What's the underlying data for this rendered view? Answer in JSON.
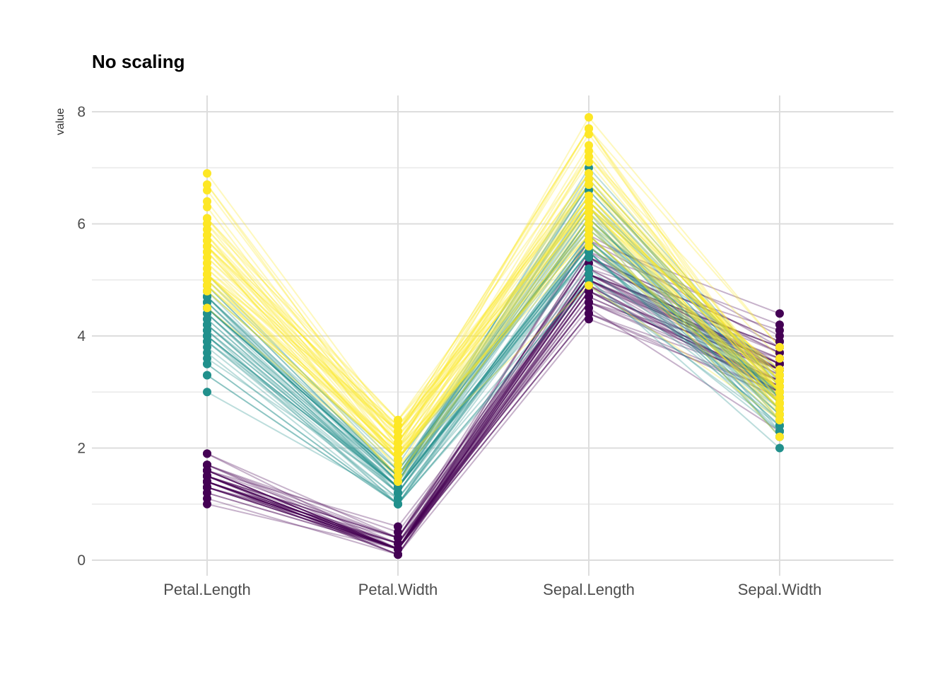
{
  "title": "No scaling",
  "ylabel": "value",
  "chart_data": {
    "type": "line",
    "variant": "parallel-coordinates",
    "title": "No scaling",
    "ylabel": "value",
    "xlabel": "",
    "categories": [
      "Petal.Length",
      "Petal.Width",
      "Sepal.Length",
      "Sepal.Width"
    ],
    "yticks": [
      0,
      2,
      4,
      6,
      8
    ],
    "ylim": [
      0,
      8
    ],
    "grid": "major+minor horizontal, major vertical at each category",
    "legend": "none",
    "colors": {
      "purple": "#440154",
      "teal": "#21908C",
      "yellow": "#FDE725",
      "grid_major": "#DDDDDD",
      "grid_minor": "#E9E9E9",
      "text": "#4D4D4D"
    },
    "series": [
      {
        "name": "purple",
        "color": "#440154",
        "rows": [
          [
            1.4,
            0.2,
            5.1,
            3.5
          ],
          [
            1.4,
            0.2,
            4.9,
            3.0
          ],
          [
            1.3,
            0.2,
            4.7,
            3.2
          ],
          [
            1.5,
            0.2,
            4.6,
            3.1
          ],
          [
            1.4,
            0.2,
            5.0,
            3.6
          ],
          [
            1.7,
            0.4,
            5.4,
            3.9
          ],
          [
            1.4,
            0.3,
            4.6,
            3.4
          ],
          [
            1.5,
            0.2,
            5.0,
            3.4
          ],
          [
            1.4,
            0.2,
            4.4,
            2.9
          ],
          [
            1.5,
            0.1,
            4.9,
            3.1
          ],
          [
            1.5,
            0.2,
            5.4,
            3.7
          ],
          [
            1.6,
            0.2,
            4.8,
            3.4
          ],
          [
            1.4,
            0.1,
            4.8,
            3.0
          ],
          [
            1.1,
            0.1,
            4.3,
            3.0
          ],
          [
            1.2,
            0.2,
            5.8,
            4.0
          ],
          [
            1.5,
            0.4,
            5.7,
            4.4
          ],
          [
            1.3,
            0.4,
            5.4,
            3.9
          ],
          [
            1.4,
            0.3,
            5.1,
            3.5
          ],
          [
            1.7,
            0.3,
            5.7,
            3.8
          ],
          [
            1.5,
            0.3,
            5.1,
            3.8
          ],
          [
            1.7,
            0.2,
            5.4,
            3.4
          ],
          [
            1.5,
            0.4,
            5.1,
            3.7
          ],
          [
            1.0,
            0.2,
            4.6,
            3.6
          ],
          [
            1.7,
            0.5,
            5.1,
            3.3
          ],
          [
            1.9,
            0.2,
            4.8,
            3.4
          ],
          [
            1.6,
            0.2,
            5.0,
            3.0
          ],
          [
            1.6,
            0.4,
            5.0,
            3.4
          ],
          [
            1.5,
            0.2,
            5.2,
            3.5
          ],
          [
            1.4,
            0.2,
            5.2,
            3.4
          ],
          [
            1.6,
            0.2,
            4.7,
            3.2
          ],
          [
            1.6,
            0.2,
            4.8,
            3.1
          ],
          [
            1.5,
            0.4,
            5.4,
            3.4
          ],
          [
            1.5,
            0.1,
            5.2,
            4.1
          ],
          [
            1.4,
            0.2,
            5.5,
            4.2
          ],
          [
            1.5,
            0.2,
            4.9,
            3.1
          ],
          [
            1.2,
            0.2,
            5.0,
            3.2
          ],
          [
            1.3,
            0.2,
            5.5,
            3.5
          ],
          [
            1.4,
            0.1,
            4.9,
            3.6
          ],
          [
            1.3,
            0.2,
            4.4,
            3.0
          ],
          [
            1.5,
            0.2,
            5.1,
            3.4
          ],
          [
            1.3,
            0.3,
            5.0,
            3.5
          ],
          [
            1.3,
            0.3,
            4.5,
            2.3
          ],
          [
            1.3,
            0.2,
            4.4,
            3.2
          ],
          [
            1.6,
            0.6,
            5.0,
            3.5
          ],
          [
            1.9,
            0.4,
            5.1,
            3.8
          ],
          [
            1.4,
            0.3,
            4.8,
            3.0
          ],
          [
            1.6,
            0.2,
            5.1,
            3.8
          ],
          [
            1.4,
            0.2,
            4.6,
            3.2
          ],
          [
            1.5,
            0.2,
            5.3,
            3.7
          ],
          [
            1.4,
            0.2,
            5.0,
            3.3
          ]
        ]
      },
      {
        "name": "teal",
        "color": "#21908C",
        "rows": [
          [
            4.7,
            1.4,
            7.0,
            3.2
          ],
          [
            4.5,
            1.5,
            6.4,
            3.2
          ],
          [
            4.9,
            1.5,
            6.9,
            3.1
          ],
          [
            4.0,
            1.3,
            5.5,
            2.3
          ],
          [
            4.6,
            1.5,
            6.5,
            2.8
          ],
          [
            4.5,
            1.3,
            5.7,
            2.8
          ],
          [
            4.7,
            1.6,
            6.3,
            3.3
          ],
          [
            3.3,
            1.0,
            4.9,
            2.4
          ],
          [
            4.6,
            1.3,
            6.6,
            2.9
          ],
          [
            3.9,
            1.4,
            5.2,
            2.7
          ],
          [
            3.5,
            1.0,
            5.0,
            2.0
          ],
          [
            4.2,
            1.5,
            5.9,
            3.0
          ],
          [
            4.0,
            1.0,
            6.0,
            2.2
          ],
          [
            4.7,
            1.4,
            6.1,
            2.9
          ],
          [
            3.6,
            1.3,
            5.6,
            2.9
          ],
          [
            4.4,
            1.4,
            6.7,
            3.1
          ],
          [
            4.5,
            1.5,
            5.6,
            3.0
          ],
          [
            4.1,
            1.0,
            5.8,
            2.7
          ],
          [
            4.5,
            1.5,
            6.2,
            2.2
          ],
          [
            3.9,
            1.1,
            5.6,
            2.5
          ],
          [
            4.8,
            1.8,
            5.9,
            3.2
          ],
          [
            4.0,
            1.3,
            6.1,
            2.8
          ],
          [
            4.9,
            1.5,
            6.3,
            2.5
          ],
          [
            4.7,
            1.2,
            6.1,
            2.8
          ],
          [
            4.3,
            1.3,
            6.4,
            2.9
          ],
          [
            4.4,
            1.4,
            6.6,
            3.0
          ],
          [
            4.8,
            1.4,
            6.8,
            2.8
          ],
          [
            5.0,
            1.7,
            6.7,
            3.0
          ],
          [
            4.5,
            1.5,
            6.0,
            2.9
          ],
          [
            3.5,
            1.0,
            5.7,
            2.6
          ],
          [
            3.8,
            1.1,
            5.5,
            2.4
          ],
          [
            3.7,
            1.0,
            5.5,
            2.4
          ],
          [
            3.9,
            1.2,
            5.8,
            2.7
          ],
          [
            5.1,
            1.6,
            6.0,
            2.7
          ],
          [
            4.5,
            1.5,
            5.4,
            3.0
          ],
          [
            4.5,
            1.6,
            6.0,
            3.4
          ],
          [
            4.7,
            1.5,
            6.7,
            3.1
          ],
          [
            4.4,
            1.3,
            6.3,
            2.3
          ],
          [
            4.1,
            1.3,
            5.6,
            3.0
          ],
          [
            4.0,
            1.3,
            5.5,
            2.5
          ],
          [
            4.4,
            1.2,
            5.5,
            2.6
          ],
          [
            4.6,
            1.4,
            6.1,
            3.0
          ],
          [
            4.0,
            1.2,
            5.8,
            2.6
          ],
          [
            3.3,
            1.0,
            5.0,
            2.3
          ],
          [
            4.2,
            1.3,
            5.6,
            2.7
          ],
          [
            4.2,
            1.2,
            5.7,
            3.0
          ],
          [
            4.2,
            1.3,
            5.7,
            2.9
          ],
          [
            4.3,
            1.3,
            6.2,
            2.9
          ],
          [
            3.0,
            1.1,
            5.1,
            2.5
          ],
          [
            4.1,
            1.3,
            5.7,
            2.8
          ]
        ]
      },
      {
        "name": "yellow",
        "color": "#FDE725",
        "rows": [
          [
            6.0,
            2.5,
            6.3,
            3.3
          ],
          [
            5.1,
            1.9,
            5.8,
            2.7
          ],
          [
            5.9,
            2.1,
            7.1,
            3.0
          ],
          [
            5.6,
            1.8,
            6.3,
            2.9
          ],
          [
            5.8,
            2.2,
            6.5,
            3.0
          ],
          [
            6.6,
            2.1,
            7.6,
            3.0
          ],
          [
            4.5,
            1.7,
            4.9,
            2.5
          ],
          [
            6.3,
            1.8,
            7.3,
            2.9
          ],
          [
            5.8,
            1.8,
            6.7,
            2.5
          ],
          [
            6.1,
            2.5,
            7.2,
            3.6
          ],
          [
            5.1,
            2.0,
            6.5,
            3.2
          ],
          [
            5.3,
            1.9,
            6.4,
            2.7
          ],
          [
            5.5,
            2.1,
            6.8,
            3.0
          ],
          [
            5.0,
            2.0,
            5.7,
            2.5
          ],
          [
            5.1,
            2.4,
            5.8,
            2.8
          ],
          [
            5.3,
            2.3,
            6.4,
            3.2
          ],
          [
            5.5,
            1.8,
            6.5,
            3.0
          ],
          [
            6.7,
            2.2,
            7.7,
            3.8
          ],
          [
            6.9,
            2.3,
            7.7,
            2.6
          ],
          [
            5.0,
            1.5,
            6.0,
            2.2
          ],
          [
            5.7,
            2.3,
            6.9,
            3.2
          ],
          [
            4.9,
            2.0,
            5.6,
            2.8
          ],
          [
            6.7,
            2.0,
            7.7,
            2.8
          ],
          [
            4.9,
            1.8,
            6.3,
            2.7
          ],
          [
            5.7,
            2.1,
            6.7,
            3.3
          ],
          [
            6.0,
            1.8,
            7.2,
            3.2
          ],
          [
            4.8,
            1.8,
            6.2,
            2.8
          ],
          [
            4.9,
            1.8,
            6.1,
            3.0
          ],
          [
            5.6,
            2.1,
            6.4,
            2.8
          ],
          [
            5.8,
            1.6,
            7.2,
            3.0
          ],
          [
            6.1,
            1.9,
            7.4,
            2.8
          ],
          [
            6.4,
            2.0,
            7.9,
            3.8
          ],
          [
            5.6,
            2.2,
            6.4,
            2.8
          ],
          [
            5.1,
            1.5,
            6.3,
            2.8
          ],
          [
            5.6,
            1.4,
            6.1,
            2.6
          ],
          [
            6.1,
            2.3,
            7.7,
            3.0
          ],
          [
            5.6,
            2.4,
            6.3,
            3.4
          ],
          [
            5.5,
            1.8,
            6.4,
            3.1
          ],
          [
            4.8,
            1.8,
            6.0,
            3.0
          ],
          [
            5.4,
            2.1,
            6.9,
            3.1
          ],
          [
            5.6,
            2.4,
            6.7,
            3.1
          ],
          [
            5.1,
            2.3,
            6.9,
            3.1
          ],
          [
            5.1,
            1.9,
            5.8,
            2.7
          ],
          [
            5.9,
            2.3,
            6.8,
            3.2
          ],
          [
            5.7,
            2.5,
            6.7,
            3.3
          ],
          [
            5.2,
            2.3,
            6.7,
            3.0
          ],
          [
            5.0,
            1.9,
            6.3,
            2.5
          ],
          [
            5.2,
            2.0,
            6.5,
            3.0
          ],
          [
            5.4,
            2.3,
            6.2,
            3.4
          ],
          [
            5.1,
            1.8,
            5.9,
            3.0
          ]
        ]
      }
    ]
  }
}
